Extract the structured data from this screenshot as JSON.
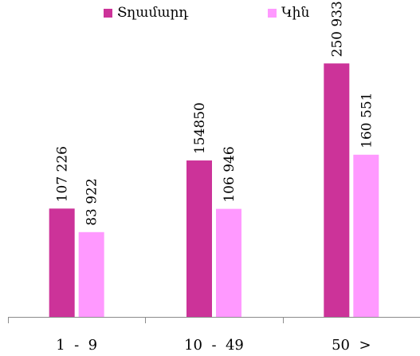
{
  "chart_data": {
    "type": "bar",
    "categories": [
      "1  -  9",
      "10  -  49",
      "50  >"
    ],
    "series": [
      {
        "name": "Տղամարդ",
        "values": [
          107226,
          154850,
          250933
        ],
        "labels": [
          "107 226",
          "154850",
          "250 933"
        ]
      },
      {
        "name": "Կին",
        "values": [
          83922,
          106946,
          160551
        ],
        "labels": [
          "83 922",
          "106 946",
          "160 551"
        ]
      }
    ],
    "ylim": [
      0,
      290000
    ],
    "legend": "top",
    "grid": false,
    "colors": [
      "#CC3399",
      "#FF99FF"
    ]
  }
}
